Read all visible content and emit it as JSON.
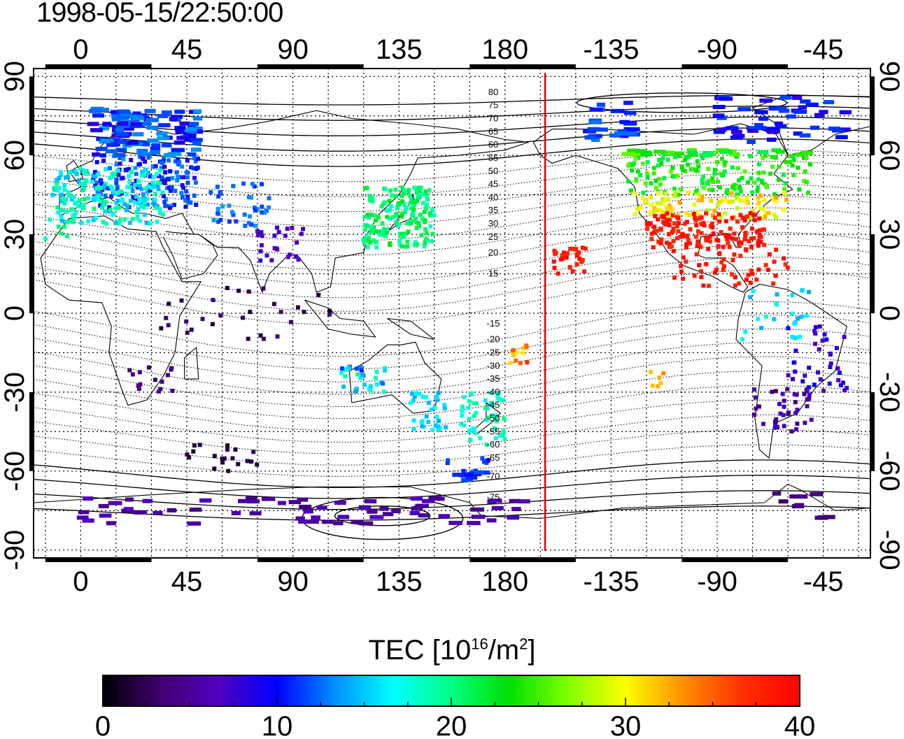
{
  "title": "1998-05-15/22:50:00",
  "map": {
    "lon_ticks": [
      {
        "lon": 0,
        "label": "0"
      },
      {
        "lon": 45,
        "label": "45"
      },
      {
        "lon": 90,
        "label": "90"
      },
      {
        "lon": 135,
        "label": "135"
      },
      {
        "lon": 180,
        "label": "180"
      },
      {
        "lon": 225,
        "label": "-135"
      },
      {
        "lon": 270,
        "label": "-90"
      },
      {
        "lon": 315,
        "label": "-45"
      }
    ],
    "lat_ticks": [
      {
        "lat": 90,
        "label": "90"
      },
      {
        "lat": 60,
        "label": "60"
      },
      {
        "lat": 30,
        "label": "30"
      },
      {
        "lat": 0,
        "label": "0"
      },
      {
        "lat": -30,
        "label": "-30"
      },
      {
        "lat": -60,
        "label": "-60"
      },
      {
        "lat": -90,
        "label": "-90"
      }
    ],
    "lon_range": [
      -20,
      335
    ],
    "lat_range": [
      -93,
      93
    ],
    "terminator_lon": 197,
    "terminator_color": "#e00000",
    "mlat_labels": [
      {
        "label": "80",
        "lat": 84
      },
      {
        "label": "75",
        "lat": 79
      },
      {
        "label": "70",
        "lat": 74
      },
      {
        "label": "65",
        "lat": 69
      },
      {
        "label": "60",
        "lat": 64
      },
      {
        "label": "55",
        "lat": 59
      },
      {
        "label": "50",
        "lat": 54
      },
      {
        "label": "45",
        "lat": 49
      },
      {
        "label": "40",
        "lat": 44
      },
      {
        "label": "35",
        "lat": 39
      },
      {
        "label": "30",
        "lat": 34
      },
      {
        "label": "25",
        "lat": 29
      },
      {
        "label": "20",
        "lat": 23
      },
      {
        "label": "15",
        "lat": 15
      },
      {
        "label": "-15",
        "lat": -4
      },
      {
        "label": "-20",
        "lat": -10
      },
      {
        "label": "-25",
        "lat": -15
      },
      {
        "label": "-30",
        "lat": -20
      },
      {
        "label": "-35",
        "lat": -25
      },
      {
        "label": "-40",
        "lat": -30
      },
      {
        "label": "-45",
        "lat": -35
      },
      {
        "label": "-50",
        "lat": -40
      },
      {
        "label": "-55",
        "lat": -45
      },
      {
        "label": "-60",
        "lat": -50
      },
      {
        "label": "-65",
        "lat": -55
      },
      {
        "label": "-70",
        "lat": -62
      },
      {
        "label": "-75",
        "lat": -70
      }
    ],
    "tec_regions": [
      {
        "lon": [
          5,
          50
        ],
        "lat": [
          40,
          78
        ],
        "tec": [
          8,
          14
        ],
        "n": 260
      },
      {
        "lon": [
          -12,
          35
        ],
        "lat": [
          34,
          55
        ],
        "tec": [
          14,
          20
        ],
        "n": 180
      },
      {
        "lon": [
          -15,
          5
        ],
        "lat": [
          28,
          45
        ],
        "tec": [
          17,
          21
        ],
        "n": 20
      },
      {
        "lon": [
          55,
          80
        ],
        "lat": [
          33,
          50
        ],
        "tec": [
          11,
          14
        ],
        "n": 40
      },
      {
        "lon": [
          74,
          95
        ],
        "lat": [
          20,
          33
        ],
        "tec": [
          6,
          8
        ],
        "n": 25
      },
      {
        "lon": [
          120,
          150
        ],
        "lat": [
          25,
          48
        ],
        "tec": [
          18,
          23
        ],
        "n": 160
      },
      {
        "lon": [
          110,
          130
        ],
        "lat": [
          -30,
          -20
        ],
        "tec": [
          10,
          20
        ],
        "n": 30
      },
      {
        "lon": [
          140,
          155
        ],
        "lat": [
          -45,
          -30
        ],
        "tec": [
          14,
          17
        ],
        "n": 35
      },
      {
        "lon": [
          160,
          180
        ],
        "lat": [
          -50,
          -30
        ],
        "tec": [
          16,
          20
        ],
        "n": 50
      },
      {
        "lon": [
          155,
          175
        ],
        "lat": [
          -65,
          -55
        ],
        "tec": [
          10,
          12
        ],
        "n": 18
      },
      {
        "lon": [
          0,
          190
        ],
        "lat": [
          -80,
          -70
        ],
        "tec": [
          4,
          7
        ],
        "n": 70
      },
      {
        "lon": [
          45,
          75
        ],
        "lat": [
          -60,
          -50
        ],
        "tec": [
          1,
          3
        ],
        "n": 20
      },
      {
        "lon": [
          30,
          110
        ],
        "lat": [
          -10,
          10
        ],
        "tec": [
          1,
          4
        ],
        "n": 30
      },
      {
        "lon": [
          20,
          40
        ],
        "lat": [
          -30,
          -20
        ],
        "tec": [
          3,
          5
        ],
        "n": 15
      },
      {
        "lon": [
          215,
          235
        ],
        "lat": [
          65,
          80
        ],
        "tec": [
          10,
          13
        ],
        "n": 25
      },
      {
        "lon": [
          230,
          310
        ],
        "lat": [
          45,
          62
        ],
        "tec": [
          21,
          26
        ],
        "n": 180
      },
      {
        "lon": [
          235,
          300
        ],
        "lat": [
          36,
          46
        ],
        "tec": [
          28,
          33
        ],
        "n": 90
      },
      {
        "lon": [
          240,
          290
        ],
        "lat": [
          25,
          38
        ],
        "tec": [
          37,
          40
        ],
        "n": 140
      },
      {
        "lon": [
          250,
          300
        ],
        "lat": [
          10,
          25
        ],
        "tec": [
          37,
          40
        ],
        "n": 50
      },
      {
        "lon": [
          200,
          215
        ],
        "lat": [
          15,
          25
        ],
        "tec": [
          37,
          40
        ],
        "n": 30
      },
      {
        "lon": [
          280,
          310
        ],
        "lat": [
          -10,
          10
        ],
        "tec": [
          14,
          18
        ],
        "n": 25
      },
      {
        "lon": [
          300,
          325
        ],
        "lat": [
          -30,
          -5
        ],
        "tec": [
          6,
          10
        ],
        "n": 40
      },
      {
        "lon": [
          285,
          310
        ],
        "lat": [
          -45,
          -28
        ],
        "tec": [
          3,
          8
        ],
        "n": 40
      },
      {
        "lon": [
          270,
          325
        ],
        "lat": [
          65,
          82
        ],
        "tec": [
          8,
          12
        ],
        "n": 50
      },
      {
        "lon": [
          295,
          320
        ],
        "lat": [
          -78,
          -68
        ],
        "tec": [
          3,
          5
        ],
        "n": 10
      },
      {
        "lon": [
          182,
          190
        ],
        "lat": [
          -20,
          -12
        ],
        "tec": [
          30,
          38
        ],
        "n": 12
      },
      {
        "lon": [
          240,
          248
        ],
        "lat": [
          -28,
          -22
        ],
        "tec": [
          30,
          34
        ],
        "n": 6
      }
    ]
  },
  "colorbar": {
    "title": "TEC  [10",
    "title_exp": "16",
    "title_unit": "/m",
    "title_unit_exp": "2",
    "title_close": "]",
    "min": 0,
    "max": 40,
    "ticks": [
      {
        "value": 0,
        "label": "0"
      },
      {
        "value": 10,
        "label": "10"
      },
      {
        "value": 20,
        "label": "20"
      },
      {
        "value": 30,
        "label": "30"
      },
      {
        "value": 40,
        "label": "40"
      }
    ],
    "colors": [
      "#000000",
      "#400070",
      "#5000c0",
      "#0000ff",
      "#0090ff",
      "#00ffff",
      "#00ff80",
      "#00e000",
      "#80ff00",
      "#ffff00",
      "#ff9000",
      "#ff3000",
      "#ff0000"
    ]
  }
}
